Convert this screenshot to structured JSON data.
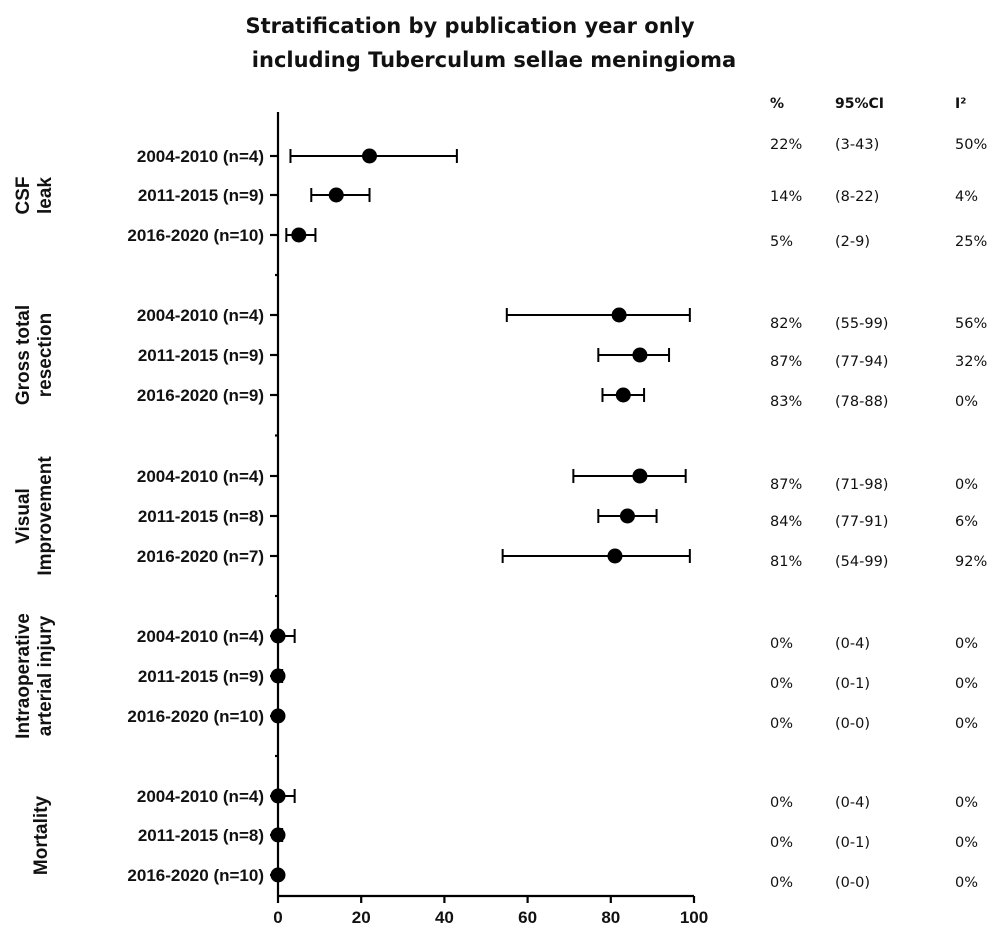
{
  "chart_data": {
    "type": "forest",
    "title_lines": [
      "Stratification by publication year only",
      "including Tuberculum sellae meningioma"
    ],
    "xlim": [
      0,
      100
    ],
    "xticks": [
      0,
      20,
      40,
      60,
      80,
      100
    ],
    "columns": [
      "%",
      "95%CI",
      "I²"
    ],
    "groups": [
      {
        "name_lines": [
          "CSF",
          "leak"
        ],
        "rows": [
          {
            "label": "2004-2010 (n=4)",
            "estimate": 22,
            "ci": [
              3,
              43
            ],
            "pct": "22%",
            "ci_text": "(3-43)",
            "i2": "50%"
          },
          {
            "label": "2011-2015 (n=9)",
            "estimate": 14,
            "ci": [
              8,
              22
            ],
            "pct": "14%",
            "ci_text": "(8-22)",
            "i2": "4%"
          },
          {
            "label": "2016-2020 (n=10)",
            "estimate": 5,
            "ci": [
              2,
              9
            ],
            "pct": "5%",
            "ci_text": "(2-9)",
            "i2": "25%"
          }
        ]
      },
      {
        "name_lines": [
          "Gross total",
          "resection"
        ],
        "rows": [
          {
            "label": "2004-2010 (n=4)",
            "estimate": 82,
            "ci": [
              55,
              99
            ],
            "pct": "82%",
            "ci_text": "(55-99)",
            "i2": "56%"
          },
          {
            "label": "2011-2015 (n=9)",
            "estimate": 87,
            "ci": [
              77,
              94
            ],
            "pct": "87%",
            "ci_text": "(77-94)",
            "i2": "32%"
          },
          {
            "label": "2016-2020 (n=9)",
            "estimate": 83,
            "ci": [
              78,
              88
            ],
            "pct": "83%",
            "ci_text": "(78-88)",
            "i2": "0%"
          }
        ]
      },
      {
        "name_lines": [
          "Visual",
          "Improvement"
        ],
        "rows": [
          {
            "label": "2004-2010 (n=4)",
            "estimate": 87,
            "ci": [
              71,
              98
            ],
            "pct": "87%",
            "ci_text": "(71-98)",
            "i2": "0%"
          },
          {
            "label": "2011-2015 (n=8)",
            "estimate": 84,
            "ci": [
              77,
              91
            ],
            "pct": "84%",
            "ci_text": "(77-91)",
            "i2": "6%"
          },
          {
            "label": "2016-2020 (n=7)",
            "estimate": 81,
            "ci": [
              54,
              99
            ],
            "pct": "81%",
            "ci_text": "(54-99)",
            "i2": "92%"
          }
        ]
      },
      {
        "name_lines": [
          "Intraoperative",
          "arterial injury"
        ],
        "rows": [
          {
            "label": "2004-2010 (n=4)",
            "estimate": 0,
            "ci": [
              0,
              4
            ],
            "pct": "0%",
            "ci_text": "(0-4)",
            "i2": "0%"
          },
          {
            "label": "2011-2015 (n=9)",
            "estimate": 0,
            "ci": [
              0,
              1
            ],
            "pct": "0%",
            "ci_text": "(0-1)",
            "i2": "0%"
          },
          {
            "label": "2016-2020 (n=10)",
            "estimate": 0,
            "ci": [
              0,
              0
            ],
            "pct": "0%",
            "ci_text": "(0-0)",
            "i2": "0%"
          }
        ]
      },
      {
        "name_lines": [
          "Mortality"
        ],
        "rows": [
          {
            "label": "2004-2010 (n=4)",
            "estimate": 0,
            "ci": [
              0,
              4
            ],
            "pct": "0%",
            "ci_text": "(0-4)",
            "i2": "0%"
          },
          {
            "label": "2011-2015 (n=8)",
            "estimate": 0,
            "ci": [
              0,
              1
            ],
            "pct": "0%",
            "ci_text": "(0-1)",
            "i2": "0%"
          },
          {
            "label": "2016-2020 (n=10)",
            "estimate": 0,
            "ci": [
              0,
              0
            ],
            "pct": "0%",
            "ci_text": "(0-0)",
            "i2": "0%"
          }
        ]
      }
    ]
  }
}
